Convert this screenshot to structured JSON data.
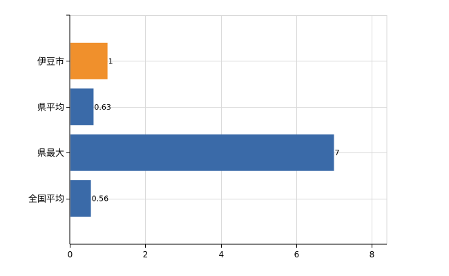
{
  "chart_data": {
    "type": "bar",
    "orientation": "horizontal",
    "categories": [
      "伊豆市",
      "県平均",
      "県最大",
      "全国平均"
    ],
    "values": [
      1,
      0.63,
      7,
      0.56
    ],
    "data_labels": [
      "1",
      "0.63",
      "7",
      "0.56"
    ],
    "bar_colors": [
      "#f0902c",
      "#3a6aa8",
      "#3a6aa8",
      "#3a6aa8"
    ],
    "xlim": [
      0,
      8.4
    ],
    "x_ticks": [
      0,
      2,
      4,
      6,
      8
    ],
    "grid": true,
    "title": "",
    "xlabel": "",
    "ylabel": ""
  }
}
